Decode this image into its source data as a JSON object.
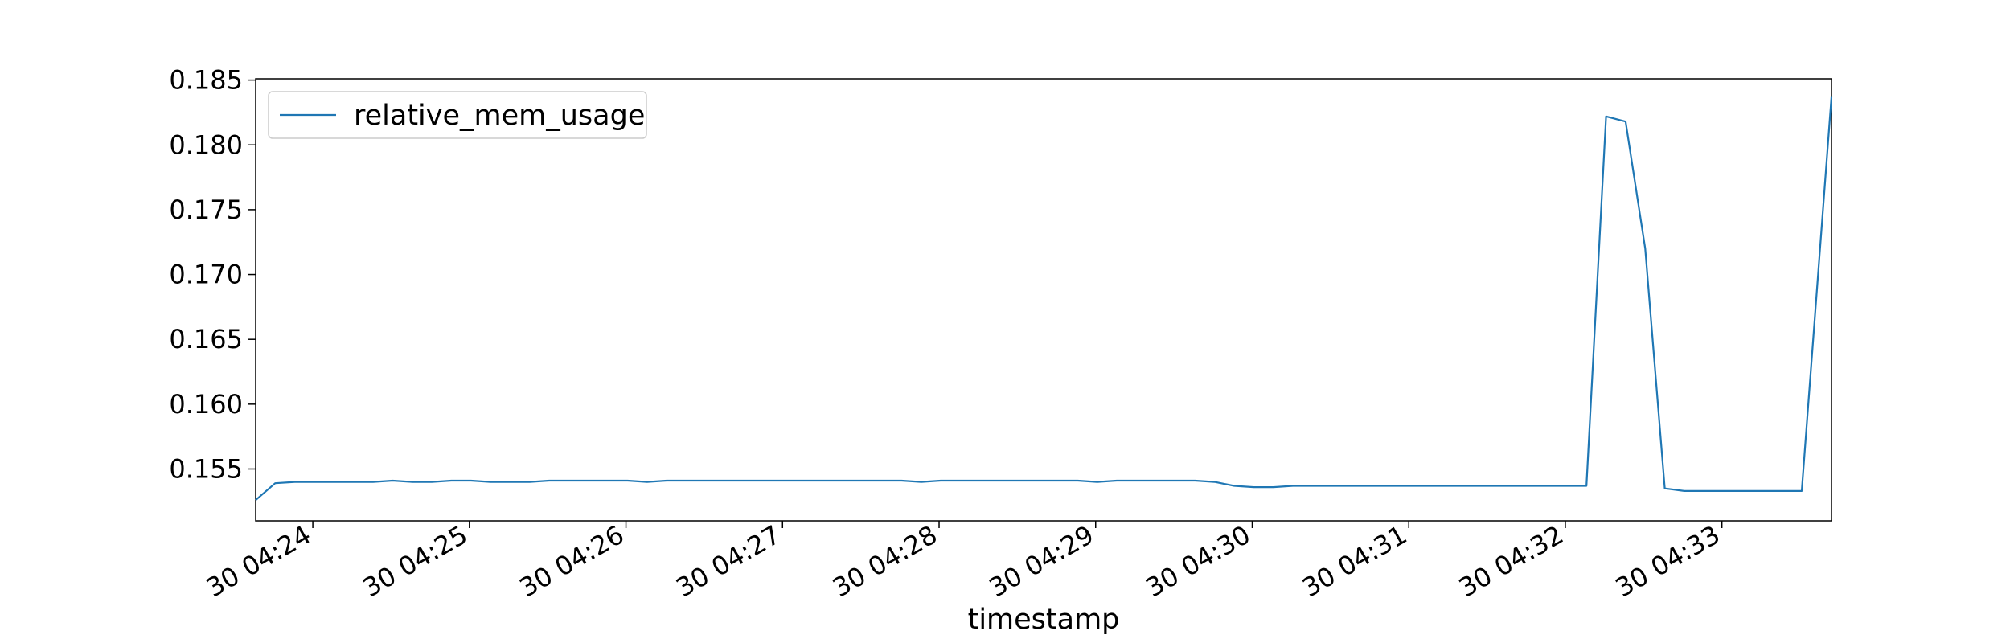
{
  "chart_data": {
    "type": "line",
    "title": "",
    "xlabel": "timestamp",
    "ylabel": "",
    "x_unit": "minutes past 04:00 on day 30",
    "xlim": [
      23.635,
      33.7
    ],
    "ylim": [
      0.151,
      0.1851
    ],
    "xticks": [
      {
        "value": 24,
        "label": "30 04:24"
      },
      {
        "value": 25,
        "label": "30 04:25"
      },
      {
        "value": 26,
        "label": "30 04:26"
      },
      {
        "value": 27,
        "label": "30 04:27"
      },
      {
        "value": 28,
        "label": "30 04:28"
      },
      {
        "value": 29,
        "label": "30 04:29"
      },
      {
        "value": 30,
        "label": "30 04:30"
      },
      {
        "value": 31,
        "label": "30 04:31"
      },
      {
        "value": 32,
        "label": "30 04:32"
      },
      {
        "value": 33,
        "label": "30 04:33"
      }
    ],
    "yticks": [
      {
        "value": 0.155,
        "label": "0.155"
      },
      {
        "value": 0.16,
        "label": "0.160"
      },
      {
        "value": 0.165,
        "label": "0.165"
      },
      {
        "value": 0.17,
        "label": "0.170"
      },
      {
        "value": 0.175,
        "label": "0.175"
      },
      {
        "value": 0.18,
        "label": "0.180"
      },
      {
        "value": 0.185,
        "label": "0.185"
      }
    ],
    "legend_position": "top-left",
    "grid": false,
    "series": [
      {
        "name": "relative_mem_usage",
        "color": "#1f77b4",
        "x": [
          23.635,
          23.76,
          23.885,
          24.01,
          24.135,
          24.26,
          24.385,
          24.51,
          24.635,
          24.76,
          24.885,
          25.01,
          25.135,
          25.26,
          25.385,
          25.51,
          25.635,
          25.76,
          25.885,
          26.01,
          26.135,
          26.26,
          26.385,
          26.51,
          26.635,
          26.76,
          26.885,
          27.01,
          27.135,
          27.26,
          27.385,
          27.51,
          27.635,
          27.76,
          27.885,
          28.01,
          28.135,
          28.26,
          28.385,
          28.51,
          28.635,
          28.76,
          28.885,
          29.01,
          29.135,
          29.26,
          29.385,
          29.51,
          29.635,
          29.76,
          29.885,
          30.01,
          30.135,
          30.26,
          30.385,
          30.51,
          30.635,
          30.76,
          30.885,
          31.01,
          31.135,
          31.26,
          31.385,
          31.51,
          31.635,
          31.76,
          31.885,
          32.01,
          32.135,
          32.26,
          32.385,
          32.51,
          32.635,
          32.76,
          32.885,
          33.01,
          33.135,
          33.26,
          33.385,
          33.51,
          33.7
        ],
        "y": [
          0.1526,
          0.1539,
          0.154,
          0.154,
          0.154,
          0.154,
          0.154,
          0.1541,
          0.154,
          0.154,
          0.1541,
          0.1541,
          0.154,
          0.154,
          0.154,
          0.1541,
          0.1541,
          0.1541,
          0.1541,
          0.1541,
          0.154,
          0.1541,
          0.1541,
          0.1541,
          0.1541,
          0.1541,
          0.1541,
          0.1541,
          0.1541,
          0.1541,
          0.1541,
          0.1541,
          0.1541,
          0.1541,
          0.154,
          0.1541,
          0.1541,
          0.1541,
          0.1541,
          0.1541,
          0.1541,
          0.1541,
          0.1541,
          0.154,
          0.1541,
          0.1541,
          0.1541,
          0.1541,
          0.1541,
          0.154,
          0.1537,
          0.1536,
          0.1536,
          0.1537,
          0.1537,
          0.1537,
          0.1537,
          0.1537,
          0.1537,
          0.1537,
          0.1537,
          0.1537,
          0.1537,
          0.1537,
          0.1537,
          0.1537,
          0.1537,
          0.1537,
          0.1537,
          0.1822,
          0.1818,
          0.172,
          0.1535,
          0.1533,
          0.1533,
          0.1533,
          0.1533,
          0.1533,
          0.1533,
          0.1533,
          0.1837
        ]
      }
    ]
  }
}
